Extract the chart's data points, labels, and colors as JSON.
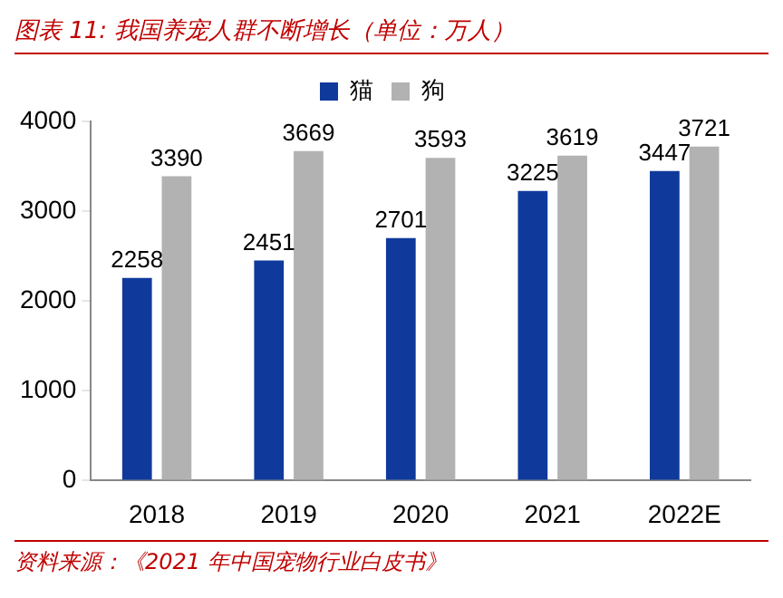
{
  "chart_data": {
    "type": "bar",
    "title": "图表 11: 我国养宠人群不断增长（单位：万人）",
    "categories": [
      "2018",
      "2019",
      "2020",
      "2021",
      "2022E"
    ],
    "series": [
      {
        "name": "猫",
        "color": "#0f3a9c",
        "values": [
          2258,
          2451,
          2701,
          3225,
          3447
        ]
      },
      {
        "name": "狗",
        "color": "#b2b2b2",
        "values": [
          3390,
          3669,
          3593,
          3619,
          3721
        ]
      }
    ],
    "ylim": [
      0,
      4000
    ],
    "yticks": [
      0,
      1000,
      2000,
      3000,
      4000
    ],
    "grid": false,
    "legend": "top",
    "data_labels": true,
    "annotations": [
      "资料来源：《2021 年中国宠物行业白皮书》"
    ]
  }
}
